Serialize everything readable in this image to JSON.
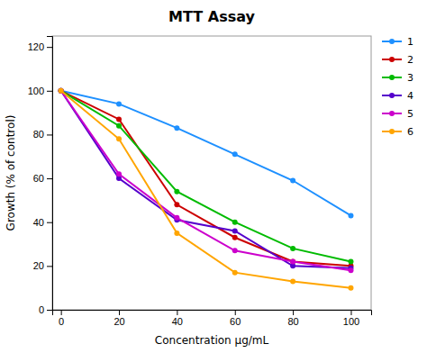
{
  "chart_data": {
    "type": "line",
    "title": "MTT Assay",
    "xlabel": "Concentration μg/mL",
    "ylabel": "Growth (% of control)",
    "x": [
      0,
      20,
      40,
      60,
      80,
      100
    ],
    "series": [
      {
        "name": "1",
        "color": "#1E90FF",
        "values": [
          100,
          94,
          83,
          71,
          59,
          43
        ]
      },
      {
        "name": "2",
        "color": "#CC0000",
        "values": [
          100,
          87,
          48,
          33,
          22,
          20
        ]
      },
      {
        "name": "3",
        "color": "#00BB00",
        "values": [
          100,
          84,
          54,
          40,
          28,
          22
        ]
      },
      {
        "name": "4",
        "color": "#5500CC",
        "values": [
          100,
          60,
          41,
          36,
          20,
          19
        ]
      },
      {
        "name": "5",
        "color": "#CC00CC",
        "values": [
          100,
          62,
          42,
          27,
          22,
          18
        ]
      },
      {
        "name": "6",
        "color": "#FFA500",
        "values": [
          100,
          78,
          35,
          17,
          13,
          10
        ]
      }
    ],
    "ylim": [
      0,
      125
    ],
    "xlim": [
      -3,
      107
    ],
    "yticks": [
      0,
      20,
      40,
      60,
      80,
      100,
      120
    ],
    "xticks": [
      0,
      20,
      40,
      60,
      80,
      100
    ],
    "marker": "o",
    "grid": false,
    "legend": "right"
  }
}
